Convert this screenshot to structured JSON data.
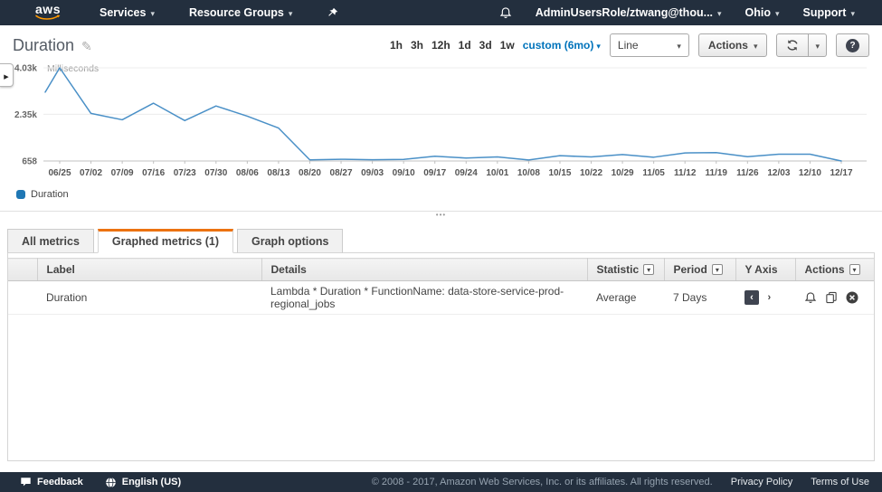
{
  "nav": {
    "logo_text": "aws",
    "services_label": "Services",
    "resource_groups_label": "Resource Groups",
    "user_label": "AdminUsersRole/ztwang@thou...",
    "region_label": "Ohio",
    "support_label": "Support"
  },
  "header": {
    "title": "Duration"
  },
  "toolbar": {
    "ranges": [
      "1h",
      "3h",
      "12h",
      "1d",
      "3d",
      "1w"
    ],
    "custom_range": "custom (6mo)",
    "chart_type": "Line",
    "actions_label": "Actions"
  },
  "chart_data": {
    "type": "line",
    "title": "Duration",
    "unit_label": "Milliseconds",
    "ylim": [
      658,
      4030
    ],
    "yticks": [
      {
        "label": "658",
        "value": 658
      },
      {
        "label": "2.35k",
        "value": 2350
      },
      {
        "label": "4.03k",
        "value": 4030
      }
    ],
    "x": [
      "",
      "06/25",
      "07/02",
      "07/09",
      "07/16",
      "07/23",
      "07/30",
      "08/06",
      "08/13",
      "08/20",
      "08/27",
      "09/03",
      "09/10",
      "09/17",
      "09/24",
      "10/01",
      "10/08",
      "10/15",
      "10/22",
      "10/29",
      "11/05",
      "11/12",
      "11/19",
      "11/26",
      "12/03",
      "12/10",
      "12/17"
    ],
    "series": [
      {
        "name": "Duration",
        "color": "#4a90c7",
        "values": [
          3150,
          4030,
          2380,
          2150,
          2750,
          2120,
          2650,
          2280,
          1850,
          700,
          720,
          705,
          715,
          830,
          765,
          805,
          695,
          850,
          805,
          890,
          795,
          950,
          960,
          815,
          905,
          905,
          658
        ]
      }
    ],
    "legend_position": "bottom-left",
    "grid": true
  },
  "tabs": [
    {
      "label": "All metrics"
    },
    {
      "label": "Graphed metrics (1)"
    },
    {
      "label": "Graph options"
    }
  ],
  "table": {
    "columns": [
      "Label",
      "Details",
      "Statistic",
      "Period",
      "Y Axis",
      "Actions"
    ],
    "row": {
      "label": "Duration",
      "details": "Lambda * Duration * FunctionName: data-store-service-prod-regional_jobs",
      "statistic": "Average",
      "period": "7 Days"
    }
  },
  "footer": {
    "feedback": "Feedback",
    "language": "English (US)",
    "copyright": "© 2008 - 2017, Amazon Web Services, Inc. or its affiliates. All rights reserved.",
    "privacy": "Privacy Policy",
    "terms": "Terms of Use"
  },
  "colors": {
    "nav_bg": "#232f3e",
    "accent_orange": "#ec7211",
    "link_blue": "#0073bb",
    "line_blue": "#4a90c7",
    "swatch_blue": "#1f77b4"
  }
}
